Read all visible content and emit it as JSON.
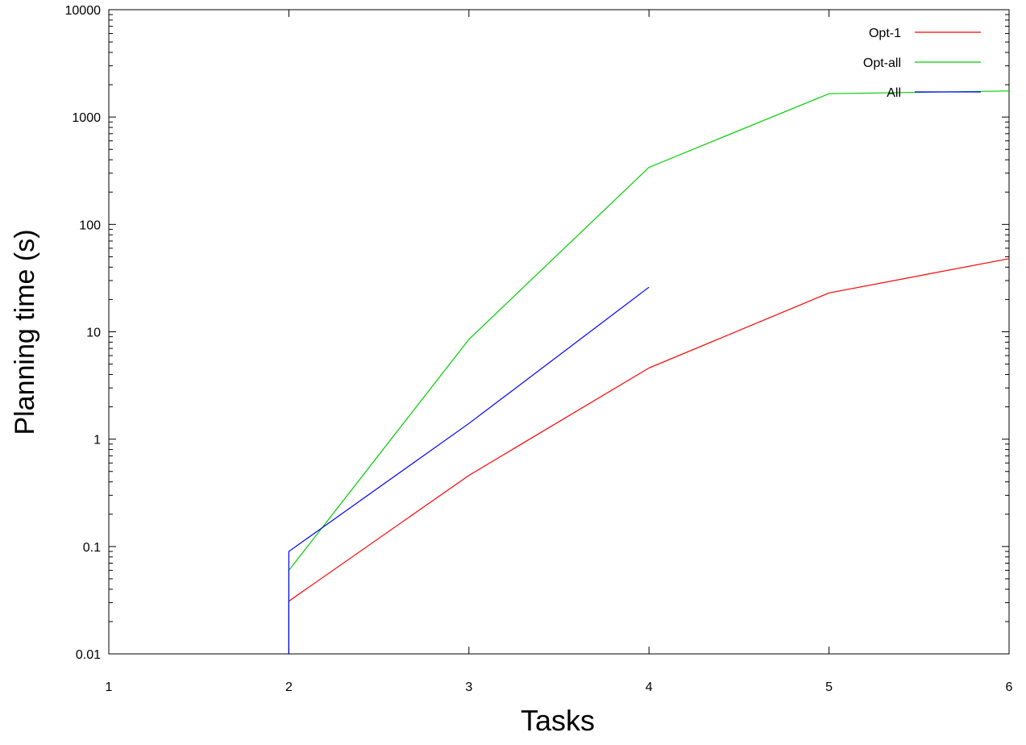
{
  "chart_data": {
    "type": "line",
    "title": "",
    "xlabel": "Tasks",
    "ylabel": "Planning time (s)",
    "xlim": [
      1,
      6
    ],
    "ylim": [
      0.01,
      10000
    ],
    "yscale": "log",
    "grid": false,
    "legend_position": "top-right",
    "x_ticks": [
      "1",
      "2",
      "3",
      "4",
      "5",
      "6"
    ],
    "y_ticks": [
      "0.01",
      "0.1",
      "1",
      "10",
      "100",
      "1000",
      "10000"
    ],
    "series": [
      {
        "name": "Opt-1",
        "color": "#ff0000",
        "x": [
          2,
          2,
          3,
          4,
          5,
          6
        ],
        "y": [
          0.01,
          0.031,
          0.46,
          4.6,
          23,
          48
        ]
      },
      {
        "name": "Opt-all",
        "color": "#00cc00",
        "x": [
          2,
          2,
          3,
          4,
          5,
          6
        ],
        "y": [
          0.01,
          0.06,
          8.5,
          340,
          1650,
          1750
        ]
      },
      {
        "name": "All",
        "color": "#0000ff",
        "x": [
          2,
          2,
          3,
          4
        ],
        "y": [
          0.01,
          0.09,
          1.4,
          26
        ]
      }
    ]
  }
}
